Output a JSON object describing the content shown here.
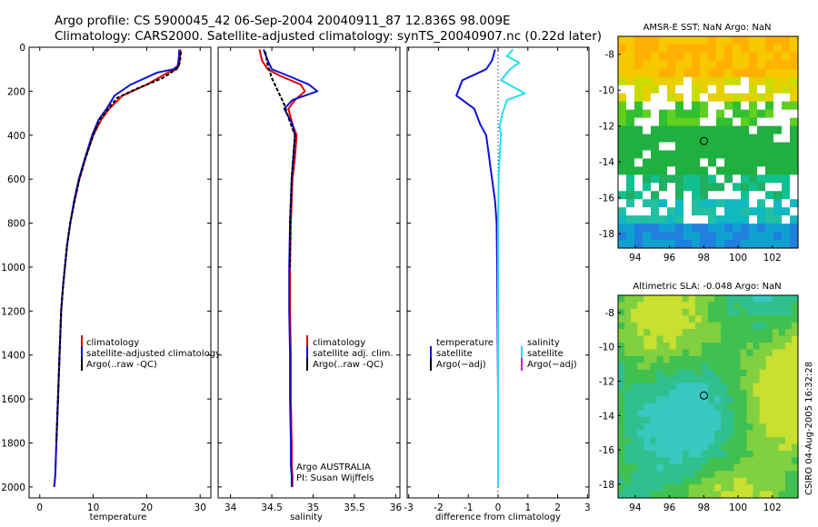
{
  "header": {
    "line1": "Argo profile: CS 5900045_42 06-Sep-2004 20040911_87 12.836S 98.009E",
    "line2": "Climatology: CARS2000. Satellite-adjusted climatology: synTS_20040907.nc (0.22d later)"
  },
  "credit": "CSIRO 04-Aug-2005 16:32:28",
  "float_info": {
    "line1": "Argo AUSTRALIA",
    "line2": "PI: Susan Wijffels"
  },
  "colors": {
    "climatology": "#e00000",
    "satellite": "#1010d8",
    "argo": "#000000",
    "salinity_satellite": "#22e0f0",
    "salinity_argo": "#d020d0"
  },
  "chart_data": [
    {
      "id": "temperature",
      "type": "line",
      "title": "",
      "xlabel": "temperature",
      "ylabel": "",
      "xlim": [
        -2,
        32
      ],
      "ylim": [
        2050,
        0
      ],
      "xticks": [
        "0",
        "10",
        "20",
        "30"
      ],
      "xtick_values": [
        0,
        10,
        20,
        30
      ],
      "yticks": [
        "0",
        "200",
        "400",
        "600",
        "800",
        "1000",
        "1200",
        "1400",
        "1600",
        "1800",
        "2000"
      ],
      "ytick_values": [
        0,
        200,
        400,
        600,
        800,
        1000,
        1200,
        1400,
        1600,
        1800,
        2000
      ],
      "legend": [
        "climatology",
        "satellite-adjusted climatology",
        "Argo(..raw -QC)"
      ],
      "legend_position": "lower-right",
      "series": [
        {
          "name": "climatology",
          "color": "#e00000",
          "x": [
            26.3,
            26.2,
            26.0,
            25.6,
            24.0,
            20.0,
            15.5,
            13.0,
            11.5,
            10.0,
            8.6,
            7.4,
            6.5,
            5.7,
            5.1,
            4.7,
            4.3,
            4.0,
            3.7,
            3.4,
            3.1,
            2.9,
            2.7
          ],
          "y": [
            10,
            50,
            85,
            100,
            115,
            170,
            220,
            280,
            330,
            400,
            500,
            600,
            700,
            800,
            900,
            1000,
            1100,
            1200,
            1400,
            1600,
            1800,
            1950,
            2000
          ]
        },
        {
          "name": "satellite-adjusted climatology",
          "color": "#1010d8",
          "x": [
            26.1,
            26.0,
            25.8,
            25.0,
            22.0,
            17.0,
            14.0,
            12.5,
            11.0,
            9.8,
            8.5,
            7.3,
            6.4,
            5.7,
            5.1,
            4.7,
            4.3,
            4.0,
            3.7,
            3.4,
            3.1,
            2.9,
            2.7
          ],
          "y": [
            10,
            50,
            85,
            100,
            115,
            170,
            220,
            280,
            330,
            400,
            500,
            600,
            700,
            800,
            900,
            1000,
            1100,
            1200,
            1400,
            1600,
            1800,
            1950,
            2000
          ]
        },
        {
          "name": "Argo(..raw -QC)",
          "color": "#000000",
          "dashed": true,
          "x": [
            26.4,
            26.2,
            25.5,
            23.0,
            18.0,
            14.5,
            12.8,
            11.2,
            10.0,
            8.6,
            7.4,
            6.5,
            5.7,
            5.1,
            4.7,
            4.3,
            4.0,
            3.7,
            3.4,
            3.1
          ],
          "y": [
            20,
            70,
            100,
            140,
            190,
            230,
            280,
            330,
            400,
            500,
            600,
            700,
            800,
            900,
            1000,
            1100,
            1200,
            1400,
            1600,
            1800
          ]
        }
      ]
    },
    {
      "id": "salinity",
      "type": "line",
      "xlabel": "salinity",
      "xlim": [
        33.85,
        36.05
      ],
      "ylim": [
        2050,
        0
      ],
      "xticks": [
        "34",
        "34.5",
        "35",
        "35.5",
        "36"
      ],
      "xtick_values": [
        34,
        34.5,
        35,
        35.5,
        36
      ],
      "legend": [
        "climatology",
        "satellite adj. clim.",
        "Argo(..raw -QC)"
      ],
      "legend_position": "lower-right",
      "series": [
        {
          "name": "climatology",
          "color": "#e00000",
          "x": [
            34.35,
            34.38,
            34.45,
            34.6,
            34.85,
            34.9,
            34.78,
            34.7,
            34.75,
            34.8,
            34.78,
            34.75,
            34.73,
            34.72,
            34.72,
            34.73,
            34.73,
            34.74,
            34.74,
            34.75,
            34.75
          ],
          "y": [
            10,
            60,
            100,
            130,
            170,
            200,
            240,
            280,
            350,
            400,
            500,
            600,
            800,
            1000,
            1200,
            1400,
            1600,
            1800,
            1900,
            1950,
            2000
          ]
        },
        {
          "name": "satellite adj. clim.",
          "color": "#1010d8",
          "x": [
            34.4,
            34.45,
            34.5,
            34.7,
            34.95,
            35.05,
            34.75,
            34.65,
            34.75,
            34.78,
            34.76,
            34.74,
            34.72,
            34.71,
            34.71,
            34.72,
            34.72,
            34.73,
            34.73,
            34.74,
            34.74
          ],
          "y": [
            10,
            60,
            100,
            130,
            170,
            200,
            240,
            280,
            350,
            400,
            500,
            600,
            800,
            1000,
            1200,
            1400,
            1600,
            1800,
            1900,
            1950,
            2000
          ]
        },
        {
          "name": "Argo(..raw -QC)",
          "color": "#000000",
          "dashed": true,
          "x": [
            34.42,
            34.45,
            34.5,
            34.55,
            34.6,
            34.65,
            34.7,
            34.78,
            34.76,
            34.74,
            34.72,
            34.72
          ],
          "y": [
            20,
            80,
            140,
            180,
            220,
            260,
            320,
            400,
            500,
            600,
            800,
            1000
          ]
        }
      ]
    },
    {
      "id": "difference",
      "type": "line",
      "xlabel": "difference from climatology",
      "xlim": [
        -3.05,
        3.05
      ],
      "ylim": [
        2050,
        0
      ],
      "xticks": [
        "-3",
        "-2",
        "-1",
        "0",
        "1",
        "2",
        "3"
      ],
      "xtick_values": [
        -3,
        -2,
        -1,
        0,
        1,
        2,
        3
      ],
      "legend_left": [
        "temperature",
        "satellite",
        "Argo(−adj)"
      ],
      "legend_right": [
        "salinity",
        "satellite",
        "Argo(−adj)"
      ],
      "series": [
        {
          "name": "temperature satellite",
          "color": "#1010d8",
          "x": [
            -0.1,
            -0.2,
            -0.4,
            -1.2,
            -1.4,
            -0.8,
            -0.6,
            -0.4,
            -0.3,
            -0.2,
            -0.1,
            -0.05,
            -0.03,
            -0.02,
            -0.01,
            0,
            0,
            0
          ],
          "y": [
            10,
            60,
            100,
            150,
            220,
            280,
            350,
            400,
            500,
            600,
            700,
            800,
            1000,
            1200,
            1400,
            1600,
            1800,
            1900
          ]
        },
        {
          "name": "salinity satellite",
          "color": "#22e0f0",
          "x": [
            0.5,
            0.3,
            0.7,
            0.4,
            0.1,
            0.5,
            0.9,
            0.3,
            0.15,
            0.05,
            0.1,
            0.05,
            0.02,
            0,
            0,
            0,
            0,
            0
          ],
          "y": [
            10,
            40,
            70,
            100,
            150,
            180,
            210,
            240,
            300,
            360,
            400,
            500,
            600,
            800,
            1200,
            1600,
            1900,
            2000
          ]
        }
      ]
    },
    {
      "id": "sst_map",
      "type": "heatmap",
      "title": "AMSR-E SST: NaN Argo: NaN",
      "xlim": [
        93,
        103.5
      ],
      "ylim": [
        -18.8,
        -7
      ],
      "xticks": [
        "94",
        "96",
        "98",
        "100",
        "102"
      ],
      "xtick_values": [
        94,
        96,
        98,
        100,
        102
      ],
      "yticks": [
        "-8",
        "-10",
        "-12",
        "-14",
        "-16",
        "-18"
      ],
      "ytick_values": [
        -8,
        -10,
        -12,
        -14,
        -16,
        -18
      ],
      "marker": {
        "lon": 98.009,
        "lat": -12.836
      }
    },
    {
      "id": "sla_map",
      "type": "heatmap",
      "title": "Altimetric SLA: -0.048 Argo: NaN",
      "xlim": [
        93,
        103.5
      ],
      "ylim": [
        -18.8,
        -7
      ],
      "xticks": [
        "94",
        "96",
        "98",
        "100",
        "102"
      ],
      "xtick_values": [
        94,
        96,
        98,
        100,
        102
      ],
      "yticks": [
        "-8",
        "-10",
        "-12",
        "-14",
        "-16",
        "-18"
      ],
      "ytick_values": [
        -8,
        -10,
        -12,
        -14,
        -16,
        -18
      ],
      "marker": {
        "lon": 98.009,
        "lat": -12.836
      }
    }
  ]
}
